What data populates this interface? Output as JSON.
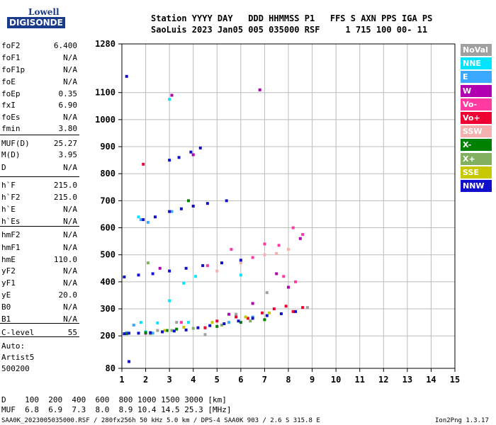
{
  "logo": {
    "line1": "Lowell",
    "line2": "DIGISONDE"
  },
  "header": {
    "row1": "Station YYYY DAY   DDD HHMMSS P1   FFS S AXN PPS IGA PS",
    "row2": "SaoLuis 2023 Jan05 005 035000 RSF     1 715 100 00- 11"
  },
  "params": [
    {
      "k": "foF2",
      "v": "6.400"
    },
    {
      "k": "foF1",
      "v": "N/A"
    },
    {
      "k": "foF1p",
      "v": "N/A"
    },
    {
      "k": "foE",
      "v": "N/A"
    },
    {
      "k": "foEp",
      "v": "0.35"
    },
    {
      "k": "fxI",
      "v": "6.90"
    },
    {
      "k": "foEs",
      "v": "N/A"
    },
    {
      "k": "fmin",
      "v": "3.80"
    },
    {
      "k": "MUF(D)",
      "v": "25.27"
    },
    {
      "k": "M(D)",
      "v": "3.95"
    },
    {
      "k": "D",
      "v": "N/A"
    },
    {
      "k": "h`F",
      "v": "215.0"
    },
    {
      "k": "h`F2",
      "v": "215.0"
    },
    {
      "k": "h`E",
      "v": "N/A"
    },
    {
      "k": "h`Es",
      "v": "N/A"
    },
    {
      "k": "hmF2",
      "v": "N/A"
    },
    {
      "k": "hmF1",
      "v": "N/A"
    },
    {
      "k": "hmE",
      "v": "110.0"
    },
    {
      "k": "yF2",
      "v": "N/A"
    },
    {
      "k": "yF1",
      "v": "N/A"
    },
    {
      "k": "yE",
      "v": "20.0"
    },
    {
      "k": "B0",
      "v": "N/A"
    },
    {
      "k": "B1",
      "v": "N/A"
    },
    {
      "k": "C-level",
      "v": "55"
    }
  ],
  "auto": {
    "l1": "Auto:",
    "l2": "Artist5",
    "l3": "500200"
  },
  "legend": [
    {
      "label": "NoVal",
      "color": "#a0a0a0"
    },
    {
      "label": "NNE",
      "color": "#00e5ff"
    },
    {
      "label": "E",
      "color": "#3aa8ff"
    },
    {
      "label": "W",
      "color": "#b000b0"
    },
    {
      "label": "Vo-",
      "color": "#ff3aa0"
    },
    {
      "label": "Vo+",
      "color": "#ee0033"
    },
    {
      "label": "SSW",
      "color": "#f5b0b0"
    },
    {
      "label": "X-",
      "color": "#008000"
    },
    {
      "label": "X+",
      "color": "#80b060"
    },
    {
      "label": "SSE",
      "color": "#c8c800"
    },
    {
      "label": "NNW",
      "color": "#1010cc"
    }
  ],
  "chart_data": {
    "type": "scatter",
    "xlabel": "",
    "ylabel": "",
    "xlim": [
      1,
      15
    ],
    "ylim": [
      80,
      1280
    ],
    "xticks": [
      1,
      2,
      3,
      4,
      5,
      6,
      7,
      8,
      9,
      10,
      11,
      12,
      13,
      14,
      15
    ],
    "yticks": [
      80,
      200,
      300,
      400,
      500,
      600,
      700,
      800,
      900,
      1000,
      1100,
      1280
    ],
    "grid": true,
    "series": [
      {
        "name": "NoVal",
        "values": [
          [
            1.2,
            210
          ],
          [
            2.5,
            220
          ],
          [
            3.3,
            250
          ],
          [
            4.5,
            205
          ],
          [
            5.8,
            280
          ],
          [
            7.1,
            360
          ],
          [
            8.8,
            305
          ]
        ]
      },
      {
        "name": "NNE",
        "values": [
          [
            1.8,
            250
          ],
          [
            2.0,
            215
          ],
          [
            2.5,
            248
          ],
          [
            3.0,
            330
          ],
          [
            3.8,
            250
          ],
          [
            1.7,
            640
          ],
          [
            3.0,
            1075
          ],
          [
            3.6,
            395
          ],
          [
            4.1,
            420
          ],
          [
            6.0,
            425
          ]
        ]
      },
      {
        "name": "E",
        "values": [
          [
            1.2,
            212
          ],
          [
            1.5,
            240
          ],
          [
            1.8,
            630
          ],
          [
            2.1,
            620
          ],
          [
            2.3,
            210
          ],
          [
            3.1,
            660
          ],
          [
            4.5,
            230
          ],
          [
            5.5,
            250
          ],
          [
            6.5,
            270
          ]
        ]
      },
      {
        "name": "W",
        "values": [
          [
            2.0,
            210
          ],
          [
            2.6,
            450
          ],
          [
            3.1,
            1090
          ],
          [
            4.0,
            870
          ],
          [
            5.5,
            280
          ],
          [
            6.5,
            320
          ],
          [
            6.8,
            1110
          ],
          [
            7.5,
            430
          ],
          [
            8.5,
            560
          ],
          [
            8.0,
            380
          ]
        ]
      },
      {
        "name": "Vo-",
        "values": [
          [
            3.5,
            250
          ],
          [
            4.6,
            460
          ],
          [
            5.6,
            520
          ],
          [
            6.5,
            490
          ],
          [
            7.0,
            540
          ],
          [
            7.6,
            535
          ],
          [
            7.8,
            420
          ],
          [
            8.2,
            600
          ],
          [
            8.6,
            575
          ],
          [
            8.3,
            400
          ]
        ]
      },
      {
        "name": "Vo+",
        "values": [
          [
            4.5,
            230
          ],
          [
            5.0,
            255
          ],
          [
            5.8,
            270
          ],
          [
            6.3,
            265
          ],
          [
            6.9,
            285
          ],
          [
            7.4,
            300
          ],
          [
            7.9,
            310
          ],
          [
            8.2,
            290
          ],
          [
            8.6,
            305
          ],
          [
            1.9,
            835
          ]
        ]
      },
      {
        "name": "SSW",
        "values": [
          [
            5.0,
            440
          ],
          [
            6.0,
            470
          ],
          [
            7.0,
            500
          ],
          [
            7.5,
            505
          ],
          [
            8.0,
            520
          ],
          [
            4.0,
            680
          ]
        ]
      },
      {
        "name": "X-",
        "values": [
          [
            1.2,
            208
          ],
          [
            2.0,
            212
          ],
          [
            2.9,
            220
          ],
          [
            3.3,
            225
          ],
          [
            5.0,
            235
          ],
          [
            6.0,
            250
          ],
          [
            7.0,
            260
          ],
          [
            3.8,
            700
          ]
        ]
      },
      {
        "name": "X+",
        "values": [
          [
            2.2,
            208
          ],
          [
            3.1,
            220
          ],
          [
            4.0,
            228
          ],
          [
            5.2,
            240
          ],
          [
            6.4,
            255
          ],
          [
            2.1,
            470
          ]
        ]
      },
      {
        "name": "SSE",
        "values": [
          [
            2.8,
            220
          ],
          [
            3.6,
            232
          ],
          [
            4.8,
            250
          ],
          [
            6.2,
            270
          ],
          [
            7.2,
            285
          ]
        ]
      },
      {
        "name": "NNW",
        "values": [
          [
            1.1,
            208
          ],
          [
            1.3,
            210
          ],
          [
            1.7,
            210
          ],
          [
            2.2,
            212
          ],
          [
            2.7,
            215
          ],
          [
            3.2,
            218
          ],
          [
            3.7,
            222
          ],
          [
            4.2,
            230
          ],
          [
            4.7,
            238
          ],
          [
            5.3,
            245
          ],
          [
            5.9,
            255
          ],
          [
            6.5,
            265
          ],
          [
            7.1,
            275
          ],
          [
            7.7,
            282
          ],
          [
            8.3,
            290
          ],
          [
            1.1,
            418
          ],
          [
            1.7,
            425
          ],
          [
            2.3,
            430
          ],
          [
            3.0,
            440
          ],
          [
            3.7,
            450
          ],
          [
            4.4,
            460
          ],
          [
            5.2,
            470
          ],
          [
            6.0,
            480
          ],
          [
            1.9,
            630
          ],
          [
            2.4,
            640
          ],
          [
            3.0,
            660
          ],
          [
            3.5,
            670
          ],
          [
            4.0,
            680
          ],
          [
            4.6,
            690
          ],
          [
            5.4,
            700
          ],
          [
            3.0,
            850
          ],
          [
            3.4,
            860
          ],
          [
            3.9,
            880
          ],
          [
            4.3,
            895
          ],
          [
            1.2,
            1160
          ],
          [
            1.3,
            105
          ]
        ]
      }
    ]
  },
  "footer": {
    "d_row": "D    100  200  400  600  800 1000 1500 3000 [km]",
    "muf_row": "MUF  6.8  6.9  7.3  8.0  8.9 10.4 14.5 25.3 [MHz]",
    "info": "SAA0K_2023005035000.RSF / 280fx256h 50 kHz 5.0 km / DPS-4 SAA0K 903 / 2.6 S 315.8 E",
    "version": "Ion2Png 1.3.17"
  }
}
